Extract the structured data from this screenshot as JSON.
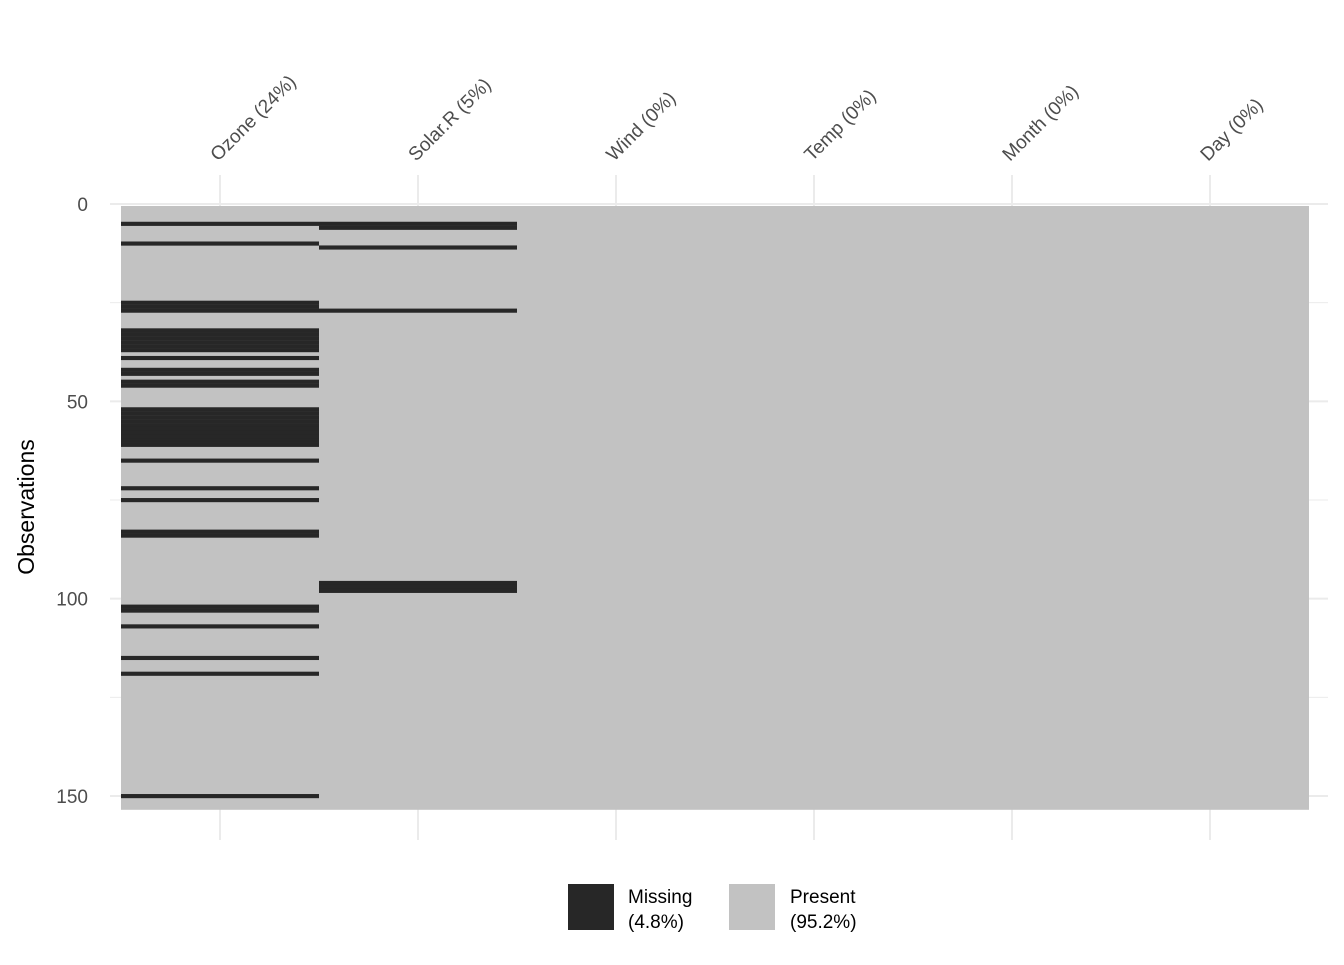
{
  "chart_data": {
    "type": "heatmap",
    "ylabel": "Observations",
    "xlabel": "",
    "n_rows": 153,
    "ylim": [
      0,
      153
    ],
    "y_ticks": [
      0,
      50,
      100,
      150
    ],
    "grid": true,
    "columns": [
      {
        "label": "Ozone (24%)",
        "missing_rows": [
          5,
          10,
          25,
          26,
          27,
          32,
          33,
          34,
          35,
          36,
          37,
          39,
          42,
          43,
          45,
          46,
          52,
          53,
          54,
          55,
          56,
          57,
          58,
          59,
          60,
          61,
          65,
          72,
          75,
          83,
          84,
          102,
          103,
          107,
          115,
          119,
          150
        ]
      },
      {
        "label": "Solar.R (5%)",
        "missing_rows": [
          5,
          6,
          11,
          27,
          96,
          97,
          98
        ]
      },
      {
        "label": "Wind (0%)",
        "missing_rows": []
      },
      {
        "label": "Temp (0%)",
        "missing_rows": []
      },
      {
        "label": "Month (0%)",
        "missing_rows": []
      },
      {
        "label": "Day (0%)",
        "missing_rows": []
      }
    ],
    "legend": {
      "placement": "bottom",
      "items": [
        {
          "label": "Missing",
          "pct": "(4.8%)",
          "color": "#272727"
        },
        {
          "label": "Present",
          "pct": "(95.2%)",
          "color": "#c2c2c2"
        }
      ]
    }
  }
}
